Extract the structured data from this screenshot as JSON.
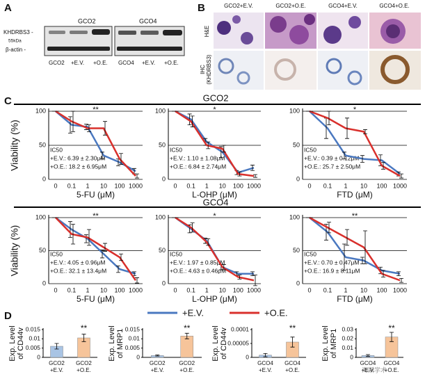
{
  "panels": {
    "A": {
      "label": "A",
      "groups": [
        "GCO2",
        "GCO4"
      ],
      "rows": [
        "KHDRBS3 -",
        "55kDa",
        "β-actin -"
      ],
      "lanes": [
        "GCO2",
        "+E.V.",
        "+O.E.",
        "GCO4",
        "+E.V.",
        "+O.E."
      ]
    },
    "B": {
      "label": "B",
      "columns": [
        "GCO2+E.V.",
        "GCO2+O.E.",
        "GCO4+E.V.",
        "GCO4+O.E."
      ],
      "rows": [
        [
          "H&E"
        ],
        [
          "IHC",
          "(KHDRBS3)"
        ]
      ]
    },
    "C": {
      "label": "C",
      "rows": [
        "GCO2",
        "GCO4"
      ]
    },
    "D": {
      "label": "D"
    },
    "watermark": "海斯学术"
  },
  "chart_data": [
    {
      "type": "line",
      "ylabel": "Viability (%)",
      "xlabel": "5-FU (μM)",
      "categories": [
        "0",
        "0.1",
        "1",
        "10",
        "100",
        "1000"
      ],
      "ylim": [
        0,
        100
      ],
      "yticks": [
        0,
        50,
        100
      ],
      "grid": true,
      "significance": "**",
      "ic50": [
        "IC50",
        "+E.V.: 6.39 ± 2.30μM",
        "+O.E.: 18.2 ± 6.95μM"
      ],
      "series": [
        {
          "name": "+E.V.",
          "color": "#4a78c0",
          "values": [
            100,
            80,
            77,
            35,
            25,
            12
          ],
          "errors": [
            0,
            12,
            4,
            5,
            5,
            4
          ]
        },
        {
          "name": "+O.E.",
          "color": "#d9302c",
          "values": [
            100,
            85,
            75,
            75,
            30,
            5
          ],
          "errors": [
            0,
            15,
            5,
            10,
            8,
            3
          ]
        }
      ]
    },
    {
      "type": "line",
      "xlabel": "L-OHP (μM)",
      "categories": [
        "0",
        "0.1",
        "1",
        "10",
        "100",
        "1000"
      ],
      "ylim": [
        0,
        100
      ],
      "yticks": [
        0,
        50,
        100
      ],
      "grid": true,
      "significance": "*",
      "ic50": [
        "IC50",
        "+E.V.: 1.10 ± 1.08μM",
        "+O.E.: 6.84 ± 2.74μM"
      ],
      "series": [
        {
          "name": "+E.V.",
          "color": "#4a78c0",
          "values": [
            100,
            88,
            55,
            40,
            10,
            17
          ],
          "errors": [
            0,
            8,
            5,
            8,
            3,
            4
          ]
        },
        {
          "name": "+O.E.",
          "color": "#d9302c",
          "values": [
            100,
            85,
            50,
            45,
            8,
            5
          ],
          "errors": [
            0,
            8,
            5,
            5,
            3,
            2
          ]
        }
      ]
    },
    {
      "type": "line",
      "xlabel": "FTD (μM)",
      "categories": [
        "0",
        "0.1",
        "1",
        "10",
        "100",
        "1000"
      ],
      "ylim": [
        0,
        100
      ],
      "yticks": [
        0,
        50,
        100
      ],
      "grid": true,
      "significance": "*",
      "ic50": [
        "IC50",
        "+E.V.: 0.39 ± 0.12μM",
        "+O.E.: 25.7 ± 2.50μM"
      ],
      "series": [
        {
          "name": "+E.V.",
          "color": "#4a78c0",
          "values": [
            100,
            75,
            35,
            30,
            28,
            8
          ],
          "errors": [
            0,
            15,
            5,
            5,
            8,
            3
          ]
        },
        {
          "name": "+O.E.",
          "color": "#d9302c",
          "values": [
            100,
            90,
            75,
            70,
            20,
            5
          ],
          "errors": [
            0,
            10,
            15,
            3,
            5,
            3
          ]
        }
      ]
    },
    {
      "type": "line",
      "ylabel": "Viability (%)",
      "xlabel": "5-FU (μM)",
      "categories": [
        "0",
        "0.1",
        "1",
        "10",
        "100",
        "1000"
      ],
      "ylim": [
        0,
        100
      ],
      "yticks": [
        0,
        50,
        100
      ],
      "grid": true,
      "significance": "**",
      "ic50": [
        "IC50",
        "+E.V.: 4.05 ± 0.96μM",
        "+O.E.: 32.1 ± 13.4μM"
      ],
      "series": [
        {
          "name": "+E.V.",
          "color": "#4a78c0",
          "values": [
            100,
            82,
            68,
            45,
            22,
            15
          ],
          "errors": [
            0,
            12,
            6,
            6,
            5,
            3
          ]
        },
        {
          "name": "+O.E.",
          "color": "#d9302c",
          "values": [
            100,
            75,
            70,
            55,
            40,
            5
          ],
          "errors": [
            0,
            15,
            12,
            6,
            5,
            4
          ]
        }
      ]
    },
    {
      "type": "line",
      "xlabel": "L-OHP (μM)",
      "categories": [
        "0",
        "0.1",
        "1",
        "10",
        "100",
        "1000"
      ],
      "ylim": [
        0,
        100
      ],
      "yticks": [
        0,
        50,
        100
      ],
      "grid": true,
      "significance": "*",
      "ic50": [
        "IC50",
        "+E.V.: 1.97 ± 0.85μM",
        "+O.E.: 4.63 ± 0.46μM"
      ],
      "series": [
        {
          "name": "+E.V.",
          "color": "#4a78c0",
          "values": [
            100,
            83,
            65,
            25,
            15,
            15
          ],
          "errors": [
            0,
            6,
            4,
            4,
            3,
            3
          ]
        },
        {
          "name": "+O.E.",
          "color": "#d9302c",
          "values": [
            100,
            85,
            63,
            25,
            10,
            5
          ],
          "errors": [
            0,
            7,
            5,
            4,
            3,
            8
          ]
        }
      ]
    },
    {
      "type": "line",
      "xlabel": "FTD (μM)",
      "categories": [
        "0",
        "0.1",
        "1",
        "10",
        "100",
        "1000"
      ],
      "ylim": [
        0,
        100
      ],
      "yticks": [
        0,
        50,
        100
      ],
      "grid": true,
      "significance": "**",
      "ic50": [
        "IC50",
        "+E.V.: 0.70 ± 0.47μM",
        "+O.E.: 16.9 ± 8.11μM"
      ],
      "series": [
        {
          "name": "+E.V.",
          "color": "#4a78c0",
          "values": [
            100,
            78,
            40,
            35,
            20,
            15
          ],
          "errors": [
            0,
            12,
            20,
            5,
            5,
            3
          ]
        },
        {
          "name": "+O.E.",
          "color": "#d9302c",
          "values": [
            100,
            85,
            70,
            55,
            15,
            5
          ],
          "errors": [
            0,
            8,
            12,
            25,
            5,
            3
          ]
        }
      ]
    },
    {
      "type": "bar",
      "ylabel": [
        "Exp. Level",
        "of CD44v"
      ],
      "categories": [
        "GCO2 +E.V.",
        "GCO2 +O.E."
      ],
      "values": [
        0.006,
        0.0105
      ],
      "errors": [
        0.0015,
        0.002
      ],
      "colors": [
        "#a9c4e4",
        "#f6c49a"
      ],
      "ylim": [
        0,
        0.015
      ],
      "yticks": [
        0,
        0.005,
        0.01,
        0.015
      ],
      "significance": "**"
    },
    {
      "type": "bar",
      "ylabel": [
        "Exp. Level",
        "of MRP1"
      ],
      "categories": [
        "GCO2 +E.V.",
        "GCO2 +O.E."
      ],
      "values": [
        0.001,
        0.0115
      ],
      "errors": [
        0.0003,
        0.0015
      ],
      "colors": [
        "#a9c4e4",
        "#f6c49a"
      ],
      "ylim": [
        0,
        0.015
      ],
      "yticks": [
        0,
        0.005,
        0.01,
        0.015
      ],
      "significance": "**"
    },
    {
      "type": "bar",
      "ylabel": [
        "Exp. Level",
        "of CD44v"
      ],
      "categories": [
        "GCO4 +E.V.",
        "GCO4 +O.E."
      ],
      "values": [
        8e-06,
        5.5e-05
      ],
      "errors": [
        6e-06,
        1.8e-05
      ],
      "colors": [
        "#a9c4e4",
        "#f6c49a"
      ],
      "ylim": [
        0,
        0.0001
      ],
      "yticks": [
        0,
        5e-05,
        0.0001
      ],
      "significance": "**"
    },
    {
      "type": "bar",
      "ylabel": [
        "Exp. Level",
        "of MRP1"
      ],
      "categories": [
        "GCO4 +E.V.",
        "GCO4 +O.E."
      ],
      "values": [
        0.002,
        0.022
      ],
      "errors": [
        0.001,
        0.005
      ],
      "colors": [
        "#a9c4e4",
        "#f6c49a"
      ],
      "ylim": [
        0,
        0.03
      ],
      "yticks": [
        0,
        0.01,
        0.02,
        0.03
      ],
      "significance": "**"
    }
  ]
}
